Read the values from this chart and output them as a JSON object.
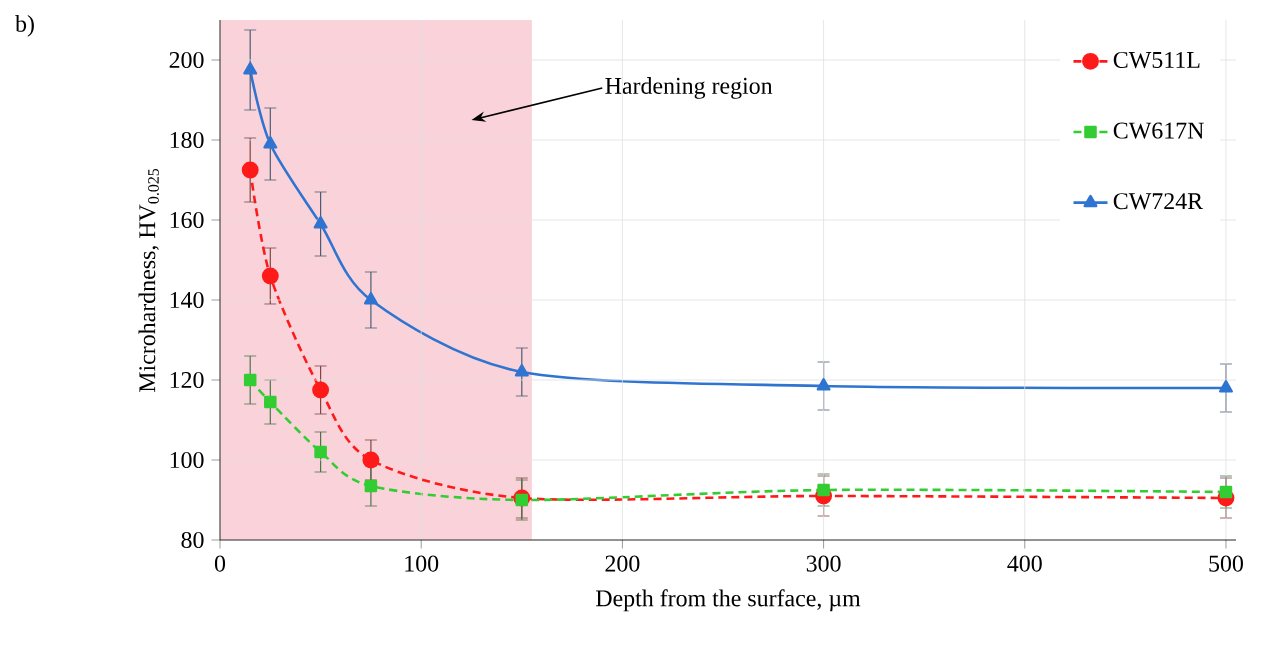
{
  "chart_data": {
    "type": "line",
    "xlabel": "Depth from the surface, µm",
    "ylabel": "Microhardness, HV$_{0.025}$",
    "annotations": [
      "b)"
    ],
    "x": [
      15,
      25,
      50,
      75,
      150,
      300,
      500
    ],
    "series": [
      {
        "name": "CW511L",
        "color": "#ff1a1a",
        "marker": "circle",
        "line_style": "dashed",
        "values": [
          172.5,
          146,
          117.5,
          100,
          90.5,
          91,
          90.5
        ],
        "errors": [
          8,
          7,
          6,
          5,
          5,
          5,
          5
        ]
      },
      {
        "name": "CW617N",
        "color": "#33cc33",
        "marker": "square",
        "line_style": "dashed",
        "values": [
          120,
          114.5,
          102,
          93.5,
          90,
          92.5,
          92
        ],
        "errors": [
          6,
          5.5,
          5,
          5,
          5,
          4,
          4
        ]
      },
      {
        "name": "CW724R",
        "color": "#2f74d0",
        "marker": "triangle",
        "line_style": "solid",
        "values": [
          197.5,
          179,
          159,
          140,
          122,
          118.5,
          118
        ],
        "errors": [
          10,
          9,
          8,
          7,
          6,
          6,
          6
        ]
      }
    ],
    "xlim": [
      0,
      505
    ],
    "xticks": [
      0,
      100,
      200,
      300,
      400,
      500
    ],
    "ylim": [
      80,
      210
    ],
    "yticks": [
      80,
      100,
      120,
      140,
      160,
      180,
      200
    ],
    "bands": [
      {
        "axis": "x",
        "from": 0,
        "to": 155,
        "label": "Hardening region",
        "color": "#f9d3d9"
      }
    ],
    "grid": true,
    "legend": "top right"
  }
}
